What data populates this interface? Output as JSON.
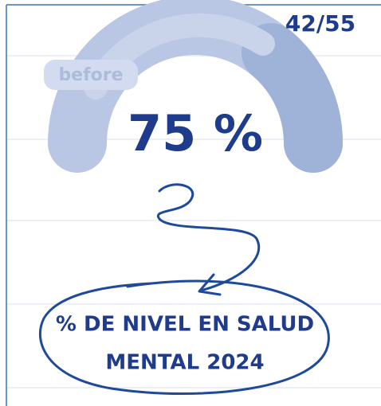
{
  "counter": "42/55",
  "badge": "before",
  "gauge": {
    "value_label": "75 %"
  },
  "caption": {
    "lines": [
      "% DE NIVEL EN SALUD",
      "MENTAL 2024"
    ]
  }
}
